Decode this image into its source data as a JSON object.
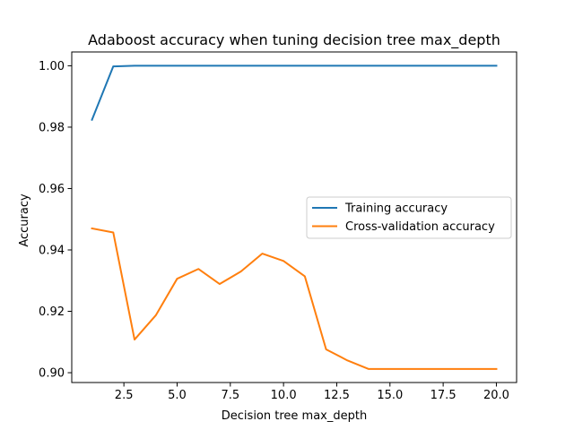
{
  "chart_data": {
    "type": "line",
    "title": "Adaboost accuracy when tuning decision tree max_depth",
    "xlabel": "Decision tree max_depth",
    "ylabel": "Accuracy",
    "xlim": [
      0.05,
      20.95
    ],
    "ylim": [
      0.8968,
      1.0045
    ],
    "xticks": [
      2.5,
      5.0,
      7.5,
      10.0,
      12.5,
      15.0,
      17.5,
      20.0
    ],
    "xtick_labels": [
      "2.5",
      "5.0",
      "7.5",
      "10.0",
      "12.5",
      "15.0",
      "17.5",
      "20.0"
    ],
    "yticks": [
      0.9,
      0.92,
      0.94,
      0.96,
      0.98,
      1.0
    ],
    "ytick_labels": [
      "0.90",
      "0.92",
      "0.94",
      "0.96",
      "0.98",
      "1.00"
    ],
    "grid": false,
    "legend_position": "center-right",
    "x": [
      1,
      2,
      3,
      4,
      5,
      6,
      7,
      8,
      9,
      10,
      11,
      12,
      13,
      14,
      15,
      16,
      17,
      18,
      19,
      20
    ],
    "series": [
      {
        "name": "Training accuracy",
        "color": "#1f77b4",
        "values": [
          0.9824,
          0.9998,
          1.0,
          1.0,
          1.0,
          1.0,
          1.0,
          1.0,
          1.0,
          1.0,
          1.0,
          1.0,
          1.0,
          1.0,
          1.0,
          1.0,
          1.0,
          1.0,
          1.0,
          1.0
        ]
      },
      {
        "name": "Cross-validation accuracy",
        "color": "#ff7f0e",
        "values": [
          0.947,
          0.9457,
          0.9108,
          0.9187,
          0.9306,
          0.9338,
          0.9289,
          0.933,
          0.9388,
          0.9364,
          0.9314,
          0.9076,
          0.904,
          0.9012,
          0.9012,
          0.9012,
          0.9012,
          0.9012,
          0.9012,
          0.9012
        ]
      }
    ]
  }
}
